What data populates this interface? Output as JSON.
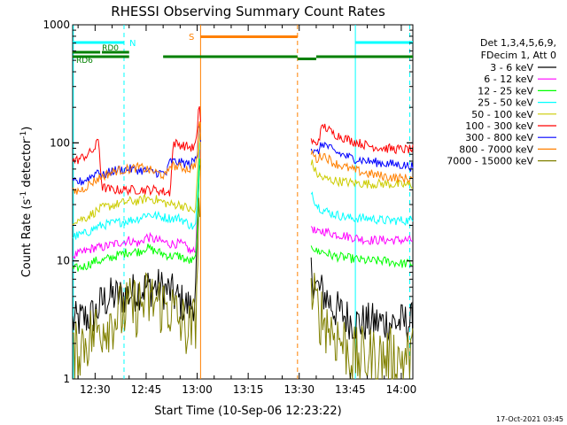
{
  "chart_data": {
    "type": "line",
    "title": "RHESSI Observing Summary Count Rates",
    "xlabel": "Start Time (10-Sep-06 12:23:22)",
    "ylabel": "Count Rate (s⁻¹ detector⁻¹)",
    "ylabel_main": "Count Rate (s",
    "ylabel_sup1": "-1",
    "ylabel_mid": " detector",
    "ylabel_sup2": "-1",
    "ylabel_end": ")",
    "yscale": "log",
    "ylim": [
      1,
      1000
    ],
    "xlim_min": [
      743.4,
      843.4
    ],
    "x_ticks": [
      {
        "label": "12:30",
        "min": 750
      },
      {
        "label": "12:45",
        "min": 765
      },
      {
        "label": "13:00",
        "min": 780
      },
      {
        "label": "13:15",
        "min": 795
      },
      {
        "label": "13:30",
        "min": 810
      },
      {
        "label": "13:45",
        "min": 825
      },
      {
        "label": "14:00",
        "min": 840
      }
    ],
    "y_ticks": [
      {
        "label": "1",
        "v": 1
      },
      {
        "label": "10",
        "v": 10
      },
      {
        "label": "100",
        "v": 100
      },
      {
        "label": "1000",
        "v": 1000
      }
    ],
    "legend_header": [
      "Det 1,3,4,5,6,9,",
      "FDecim 1, Att 0"
    ],
    "series": [
      {
        "name": "3 - 6 keV",
        "color": "#000000",
        "segments": [
          [
            [
              743.4,
              3
            ],
            [
              750,
              3.5
            ],
            [
              752,
              4.5
            ],
            [
              755,
              5
            ],
            [
              758,
              5
            ],
            [
              762,
              5.5
            ],
            [
              765,
              6
            ],
            [
              768,
              6
            ],
            [
              772,
              5.5
            ],
            [
              775,
              4.5
            ],
            [
              778,
              4
            ],
            [
              779.5,
              5
            ],
            [
              780.2,
              20
            ],
            [
              780.8,
              60
            ]
          ],
          [
            [
              813.5,
              8
            ],
            [
              815,
              6
            ],
            [
              818,
              5
            ],
            [
              820,
              4
            ],
            [
              823,
              3.5
            ],
            [
              826,
              3
            ],
            [
              830,
              3
            ],
            [
              835,
              3
            ],
            [
              840,
              3
            ],
            [
              843.4,
              3
            ]
          ]
        ]
      },
      {
        "name": "6 - 12 keV",
        "color": "#ff00ff",
        "segments": [
          [
            [
              743.4,
              11
            ],
            [
              747,
              12
            ],
            [
              750,
              13
            ],
            [
              752,
              13
            ],
            [
              756,
              14
            ],
            [
              760,
              15
            ],
            [
              763,
              14
            ],
            [
              765,
              16
            ],
            [
              768,
              15
            ],
            [
              772,
              14
            ],
            [
              775,
              14
            ],
            [
              777,
              13
            ],
            [
              778,
              12
            ],
            [
              779.5,
              12
            ],
            [
              780.2,
              30
            ],
            [
              780.8,
              80
            ]
          ],
          [
            [
              813.5,
              20
            ],
            [
              815,
              17
            ],
            [
              817,
              18
            ],
            [
              820,
              17
            ],
            [
              825,
              16
            ],
            [
              830,
              15
            ],
            [
              835,
              15
            ],
            [
              840,
              15
            ],
            [
              843.4,
              15
            ]
          ]
        ]
      },
      {
        "name": "12 - 25 keV",
        "color": "#00ff00",
        "segments": [
          [
            [
              743.4,
              8.5
            ],
            [
              747,
              9
            ],
            [
              750,
              10
            ],
            [
              752,
              10
            ],
            [
              756,
              11
            ],
            [
              760,
              12
            ],
            [
              763,
              12
            ],
            [
              765,
              13
            ],
            [
              768,
              12
            ],
            [
              772,
              11
            ],
            [
              775,
              11
            ],
            [
              777,
              10
            ],
            [
              778,
              10
            ],
            [
              779.5,
              10
            ],
            [
              780.2,
              25
            ],
            [
              780.8,
              70
            ]
          ],
          [
            [
              813.5,
              14
            ],
            [
              815,
              12
            ],
            [
              817,
              12
            ],
            [
              820,
              11
            ],
            [
              825,
              10.5
            ],
            [
              830,
              10
            ],
            [
              835,
              10
            ],
            [
              840,
              9.5
            ],
            [
              843.4,
              9.5
            ]
          ]
        ]
      },
      {
        "name": "25 - 50 keV",
        "color": "#00ffff",
        "segments": [
          [
            [
              743.4,
              16
            ],
            [
              747,
              17
            ],
            [
              750,
              19
            ],
            [
              752,
              20
            ],
            [
              756,
              21
            ],
            [
              760,
              22
            ],
            [
              763,
              23
            ],
            [
              765,
              25
            ],
            [
              768,
              24
            ],
            [
              772,
              23
            ],
            [
              775,
              23
            ],
            [
              777,
              21
            ],
            [
              778,
              20
            ],
            [
              779.5,
              19
            ],
            [
              780.2,
              40
            ],
            [
              780.8,
              100
            ]
          ],
          [
            [
              813.5,
              40
            ],
            [
              815,
              30
            ],
            [
              817,
              27
            ],
            [
              820,
              25
            ],
            [
              825,
              23
            ],
            [
              830,
              23
            ],
            [
              835,
              22
            ],
            [
              840,
              22
            ],
            [
              843.4,
              22
            ]
          ]
        ]
      },
      {
        "name": "50 - 100 keV",
        "color": "#cccc00",
        "segments": [
          [
            [
              743.4,
              22
            ],
            [
              747,
              23
            ],
            [
              750,
              26
            ],
            [
              752,
              28
            ],
            [
              756,
              30
            ],
            [
              760,
              32
            ],
            [
              763,
              32
            ],
            [
              765,
              34
            ],
            [
              768,
              33
            ],
            [
              772,
              30
            ],
            [
              775,
              30
            ],
            [
              777,
              28
            ],
            [
              778,
              27
            ],
            [
              779.5,
              26
            ],
            [
              780.2,
              60
            ],
            [
              780.8,
              120
            ]
          ],
          [
            [
              813.5,
              70
            ],
            [
              815,
              55
            ],
            [
              817,
              50
            ],
            [
              820,
              48
            ],
            [
              825,
              46
            ],
            [
              830,
              45
            ],
            [
              835,
              45
            ],
            [
              840,
              44
            ],
            [
              843.4,
              44
            ]
          ]
        ]
      },
      {
        "name": "100 - 300 keV",
        "color": "#ff0000",
        "segments": [
          [
            [
              743.4,
              70
            ],
            [
              745,
              72
            ],
            [
              748,
              80
            ],
            [
              750,
              90
            ],
            [
              751,
              110
            ],
            [
              752,
              42
            ],
            [
              755,
              40
            ],
            [
              760,
              40
            ],
            [
              765,
              40
            ],
            [
              768,
              40
            ],
            [
              771,
              38
            ],
            [
              772,
              38
            ],
            [
              773,
              100
            ],
            [
              776,
              95
            ],
            [
              779,
              90
            ],
            [
              780,
              110
            ],
            [
              780.5,
              250
            ],
            [
              781,
              150
            ]
          ],
          [
            [
              813.5,
              105
            ],
            [
              815,
              95
            ],
            [
              817,
              140
            ],
            [
              820,
              120
            ],
            [
              825,
              105
            ],
            [
              830,
              95
            ],
            [
              835,
              90
            ],
            [
              840,
              88
            ],
            [
              843.4,
              88
            ]
          ]
        ]
      },
      {
        "name": "300 - 800 keV",
        "color": "#0000ff",
        "segments": [
          [
            [
              743.4,
              46
            ],
            [
              746,
              47
            ],
            [
              748,
              50
            ],
            [
              750,
              55
            ],
            [
              751,
              60
            ],
            [
              752,
              52
            ],
            [
              755,
              58
            ],
            [
              760,
              60
            ],
            [
              765,
              58
            ],
            [
              768,
              56
            ],
            [
              771,
              55
            ],
            [
              772,
              70
            ],
            [
              775,
              68
            ],
            [
              778,
              66
            ],
            [
              780,
              75
            ],
            [
              780.5,
              180
            ],
            [
              781,
              110
            ]
          ],
          [
            [
              813.5,
              90
            ],
            [
              815,
              80
            ],
            [
              817,
              100
            ],
            [
              820,
              85
            ],
            [
              825,
              75
            ],
            [
              830,
              70
            ],
            [
              835,
              67
            ],
            [
              840,
              65
            ],
            [
              843.4,
              63
            ]
          ]
        ]
      },
      {
        "name": "800 - 7000 keV",
        "color": "#ff8000",
        "segments": [
          [
            [
              743.4,
              38
            ],
            [
              746,
              40
            ],
            [
              748,
              44
            ],
            [
              750,
              48
            ],
            [
              752,
              52
            ],
            [
              756,
              58
            ],
            [
              760,
              60
            ],
            [
              763,
              62
            ],
            [
              765,
              60
            ],
            [
              768,
              56
            ],
            [
              771,
              52
            ],
            [
              772,
              65
            ],
            [
              775,
              62
            ],
            [
              778,
              60
            ],
            [
              780,
              70
            ],
            [
              780.5,
              170
            ],
            [
              781,
              100
            ]
          ],
          [
            [
              813.5,
              85
            ],
            [
              815,
              72
            ],
            [
              817,
              80
            ],
            [
              820,
              68
            ],
            [
              825,
              60
            ],
            [
              830,
              55
            ],
            [
              835,
              52
            ],
            [
              840,
              50
            ],
            [
              843.4,
              50
            ]
          ]
        ]
      },
      {
        "name": "7000 - 15000 keV",
        "color": "#808000",
        "segments": [
          [
            [
              743.4,
              1.5
            ],
            [
              746,
              2
            ],
            [
              750,
              2.5
            ],
            [
              753,
              3
            ],
            [
              757,
              3.5
            ],
            [
              761,
              4
            ],
            [
              765,
              4.5
            ],
            [
              768,
              4.5
            ],
            [
              772,
              4
            ],
            [
              775,
              3
            ],
            [
              778,
              2.5
            ],
            [
              779.5,
              3
            ],
            [
              780.2,
              12
            ],
            [
              780.8,
              40
            ]
          ],
          [
            [
              813.5,
              5
            ],
            [
              815,
              4
            ],
            [
              818,
              3
            ],
            [
              820,
              2.5
            ],
            [
              823,
              2
            ],
            [
              826,
              1.5
            ],
            [
              830,
              1.5
            ],
            [
              835,
              1.5
            ],
            [
              840,
              1.5
            ],
            [
              843.4,
              1.5
            ]
          ]
        ]
      }
    ],
    "attenuator_label": "N",
    "attenuator_bars": [
      [
        743.4,
        758.5
      ],
      [
        826.5,
        843.4
      ]
    ],
    "saa_label": "S",
    "saa_bar": [
      781,
      809.5
    ],
    "rd0_label": "RD0",
    "rd0_bars": [
      [
        743.4,
        751.5
      ],
      [
        752,
        760
      ]
    ],
    "rd6_label": "RD6",
    "rd6_bars": [
      [
        743.4,
        760
      ],
      [
        770,
        809.5
      ],
      [
        815,
        843.4
      ]
    ],
    "rd6_gap": [
      809.5,
      815
    ],
    "vlines_cyan_dashed": [
      758.5,
      842.5
    ],
    "vlines_cyan_solid": [
      743.6,
      826.5
    ],
    "vline_orange_solid": 781,
    "vline_orange_dashed": 809.5,
    "footer_date": "17-Oct-2021 03:45"
  }
}
